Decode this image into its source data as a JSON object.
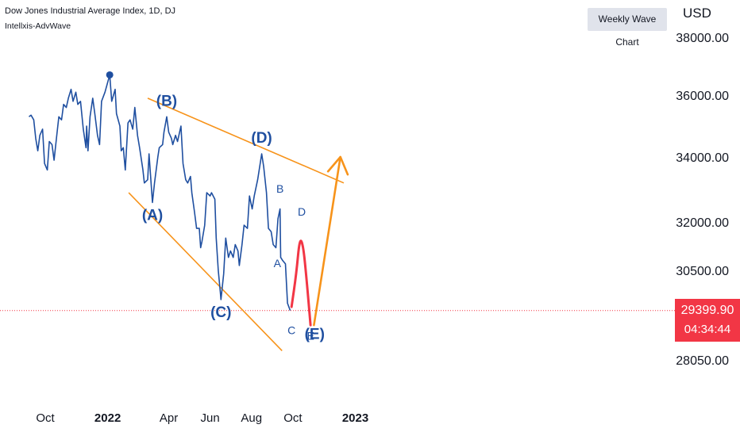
{
  "header": {
    "title": "Dow Jones Industrial Average Index, 1D, DJ",
    "indicator": "Intellxis-AdvWave",
    "weekly_button": "Weekly Wave Chart",
    "currency": "USD"
  },
  "price_tag": {
    "price": "29399.90",
    "countdown": "04:34:44"
  },
  "colors": {
    "price_line": "#1f4fa0",
    "trend_line": "#f7931a",
    "projection_red": "#f23645",
    "projection_orange": "#f7931a",
    "label_blue": "#1f4fa0",
    "price_tag_bg": "#f23645"
  },
  "chart_data": {
    "type": "line",
    "title": "Dow Jones Industrial Average Index, 1D, DJ",
    "xlabel": "",
    "ylabel": "USD",
    "ylim": [
      27000,
      39000
    ],
    "y_scale": "nonlinear (price scale as printed)",
    "y_ticks": [
      {
        "label": "38000.00",
        "value": 38000
      },
      {
        "label": "36000.00",
        "value": 36000
      },
      {
        "label": "34000.00",
        "value": 34000
      },
      {
        "label": "32000.00",
        "value": 32000
      },
      {
        "label": "30500.00",
        "value": 30500
      },
      {
        "label": "28050.00",
        "value": 28050
      }
    ],
    "x_ticks": [
      {
        "label": "Oct",
        "date": "2021-10-01",
        "bold": false
      },
      {
        "label": "2022",
        "date": "2022-01-01",
        "bold": true
      },
      {
        "label": "Apr",
        "date": "2022-04-01",
        "bold": false
      },
      {
        "label": "Jun",
        "date": "2022-06-01",
        "bold": false
      },
      {
        "label": "Aug",
        "date": "2022-08-01",
        "bold": false
      },
      {
        "label": "Oct",
        "date": "2022-10-01",
        "bold": false
      },
      {
        "label": "2023",
        "date": "2023-01-01",
        "bold": true
      }
    ],
    "series": [
      {
        "points": [
          [
            "2021-09-07",
            35300
          ],
          [
            "2021-09-10",
            35350
          ],
          [
            "2021-09-14",
            35200
          ],
          [
            "2021-09-17",
            34600
          ],
          [
            "2021-09-20",
            34200
          ],
          [
            "2021-09-23",
            34700
          ],
          [
            "2021-09-27",
            34900
          ],
          [
            "2021-09-30",
            33800
          ],
          [
            "2021-10-04",
            33600
          ],
          [
            "2021-10-07",
            34500
          ],
          [
            "2021-10-11",
            34400
          ],
          [
            "2021-10-14",
            33900
          ],
          [
            "2021-10-18",
            34700
          ],
          [
            "2021-10-21",
            35300
          ],
          [
            "2021-10-25",
            35200
          ],
          [
            "2021-10-28",
            35700
          ],
          [
            "2021-11-01",
            35600
          ],
          [
            "2021-11-04",
            35900
          ],
          [
            "2021-11-08",
            36200
          ],
          [
            "2021-11-11",
            35800
          ],
          [
            "2021-11-15",
            36100
          ],
          [
            "2021-11-18",
            35700
          ],
          [
            "2021-11-22",
            35800
          ],
          [
            "2021-11-26",
            34900
          ],
          [
            "2021-11-30",
            34300
          ],
          [
            "2021-12-01",
            35000
          ],
          [
            "2021-12-03",
            34200
          ],
          [
            "2021-12-06",
            35300
          ],
          [
            "2021-12-10",
            35900
          ],
          [
            "2021-12-13",
            35400
          ],
          [
            "2021-12-17",
            34700
          ],
          [
            "2021-12-20",
            34400
          ],
          [
            "2021-12-23",
            35800
          ],
          [
            "2021-12-28",
            36100
          ],
          [
            "2022-01-04",
            36700
          ],
          [
            "2022-01-07",
            35800
          ],
          [
            "2022-01-12",
            36200
          ],
          [
            "2022-01-14",
            35400
          ],
          [
            "2022-01-19",
            35000
          ],
          [
            "2022-01-21",
            34200
          ],
          [
            "2022-01-24",
            34300
          ],
          [
            "2022-01-27",
            33600
          ],
          [
            "2022-01-31",
            35100
          ],
          [
            "2022-02-03",
            35200
          ],
          [
            "2022-02-07",
            34900
          ],
          [
            "2022-02-10",
            35600
          ],
          [
            "2022-02-14",
            34700
          ],
          [
            "2022-02-17",
            34300
          ],
          [
            "2022-02-22",
            33600
          ],
          [
            "2022-02-24",
            33200
          ],
          [
            "2022-03-01",
            33300
          ],
          [
            "2022-03-03",
            34100
          ],
          [
            "2022-03-08",
            32600
          ],
          [
            "2022-03-11",
            33200
          ],
          [
            "2022-03-16",
            34000
          ],
          [
            "2022-03-18",
            34300
          ],
          [
            "2022-03-23",
            34400
          ],
          [
            "2022-03-25",
            34800
          ],
          [
            "2022-03-29",
            35300
          ],
          [
            "2022-04-01",
            34800
          ],
          [
            "2022-04-05",
            34600
          ],
          [
            "2022-04-07",
            34400
          ],
          [
            "2022-04-11",
            34700
          ],
          [
            "2022-04-14",
            34500
          ],
          [
            "2022-04-19",
            35000
          ],
          [
            "2022-04-22",
            33800
          ],
          [
            "2022-04-26",
            33300
          ],
          [
            "2022-04-29",
            33200
          ],
          [
            "2022-05-03",
            33400
          ],
          [
            "2022-05-05",
            32900
          ],
          [
            "2022-05-09",
            32300
          ],
          [
            "2022-05-12",
            31800
          ],
          [
            "2022-05-16",
            31800
          ],
          [
            "2022-05-18",
            31200
          ],
          [
            "2022-05-20",
            31400
          ],
          [
            "2022-05-24",
            31900
          ],
          [
            "2022-05-27",
            32900
          ],
          [
            "2022-06-01",
            32800
          ],
          [
            "2022-06-03",
            32900
          ],
          [
            "2022-06-08",
            32700
          ],
          [
            "2022-06-10",
            31500
          ],
          [
            "2022-06-13",
            30500
          ],
          [
            "2022-06-16",
            29900
          ],
          [
            "2022-06-17",
            29700
          ],
          [
            "2022-06-21",
            30400
          ],
          [
            "2022-06-24",
            31500
          ],
          [
            "2022-06-28",
            30900
          ],
          [
            "2022-07-01",
            31100
          ],
          [
            "2022-07-05",
            30900
          ],
          [
            "2022-07-08",
            31300
          ],
          [
            "2022-07-12",
            31100
          ],
          [
            "2022-07-14",
            30650
          ],
          [
            "2022-07-18",
            31300
          ],
          [
            "2022-07-21",
            31900
          ],
          [
            "2022-07-26",
            31800
          ],
          [
            "2022-07-29",
            32800
          ],
          [
            "2022-08-02",
            32400
          ],
          [
            "2022-08-05",
            32800
          ],
          [
            "2022-08-10",
            33300
          ],
          [
            "2022-08-16",
            34100
          ],
          [
            "2022-08-19",
            33700
          ],
          [
            "2022-08-23",
            32900
          ],
          [
            "2022-08-26",
            31800
          ],
          [
            "2022-08-30",
            31700
          ],
          [
            "2022-09-02",
            31300
          ],
          [
            "2022-09-06",
            31200
          ],
          [
            "2022-09-09",
            32100
          ],
          [
            "2022-09-12",
            32400
          ],
          [
            "2022-09-13",
            30900
          ],
          [
            "2022-09-16",
            30800
          ],
          [
            "2022-09-20",
            30700
          ],
          [
            "2022-09-23",
            29600
          ],
          [
            "2022-09-27",
            29400
          ]
        ]
      }
    ],
    "annotations": [
      {
        "kind": "dot",
        "date": "2022-01-04",
        "value": 36700
      },
      {
        "kind": "label",
        "text": "(A)",
        "date": "2022-03-08",
        "value": 32600,
        "position": "below"
      },
      {
        "kind": "label",
        "text": "(B)",
        "date": "2022-03-29",
        "value": 35300,
        "position": "above"
      },
      {
        "kind": "label",
        "text": "(C)",
        "date": "2022-06-17",
        "value": 29700,
        "position": "below"
      },
      {
        "kind": "label",
        "text": "(D)",
        "date": "2022-08-16",
        "value": 34100,
        "position": "above"
      },
      {
        "kind": "label",
        "text": "(E)",
        "date": "2022-11-02",
        "value": 29100,
        "position": "below"
      },
      {
        "kind": "label",
        "text": "A",
        "date": "2022-09-08",
        "value": 30600
      },
      {
        "kind": "label",
        "text": "B",
        "date": "2022-09-12",
        "value": 32900
      },
      {
        "kind": "label",
        "text": "C",
        "date": "2022-09-29",
        "value": 28750
      },
      {
        "kind": "label",
        "text": "D",
        "date": "2022-10-14",
        "value": 32200
      },
      {
        "kind": "label",
        "text": "E",
        "date": "2022-10-27",
        "value": 28600
      }
    ],
    "trend_lines": [
      {
        "from": [
          "2022-02-01",
          32900
        ],
        "to": [
          "2022-09-15",
          28300
        ]
      },
      {
        "from": [
          "2022-03-01",
          35900
        ],
        "to": [
          "2022-12-15",
          33200
        ]
      }
    ],
    "projections": [
      {
        "color": "red",
        "points": [
          [
            "2022-09-29",
            29500
          ],
          [
            "2022-10-06",
            30400
          ],
          [
            "2022-10-11",
            31500
          ],
          [
            "2022-10-16",
            31300
          ],
          [
            "2022-10-21",
            30300
          ],
          [
            "2022-10-27",
            29000
          ]
        ]
      },
      {
        "color": "orange",
        "arrow": true,
        "points": [
          [
            "2022-11-01",
            29000
          ],
          [
            "2022-12-10",
            34000
          ]
        ]
      }
    ],
    "current_price": 29399.9,
    "grid": false,
    "legend": "none"
  }
}
